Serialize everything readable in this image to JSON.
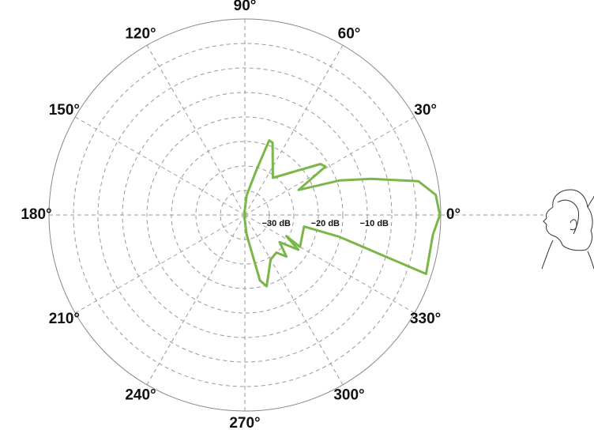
{
  "chart_data": {
    "type": "polar",
    "angle_ticks": [
      {
        "value": 0,
        "label": "0°"
      },
      {
        "value": 30,
        "label": "30°"
      },
      {
        "value": 60,
        "label": "60°"
      },
      {
        "value": 90,
        "label": "90°"
      },
      {
        "value": 120,
        "label": "120°"
      },
      {
        "value": 150,
        "label": "150°"
      },
      {
        "value": 180,
        "label": "180°"
      },
      {
        "value": 210,
        "label": "210°"
      },
      {
        "value": 240,
        "label": "240°"
      },
      {
        "value": 270,
        "label": "270°"
      },
      {
        "value": 300,
        "label": "300°"
      },
      {
        "value": 330,
        "label": "330°"
      }
    ],
    "rlim": [
      -40,
      0
    ],
    "rticks": [
      {
        "value": -30,
        "label": "−30 dB"
      },
      {
        "value": -20,
        "label": "−20 dB"
      },
      {
        "value": -10,
        "label": "−10 dB"
      }
    ],
    "rgrid": [
      -35,
      -25,
      -15,
      -5,
      0
    ],
    "series": [
      {
        "color": "#7ab648",
        "theta": [
          0,
          6,
          11,
          16,
          20,
          25,
          31,
          34,
          53,
          69,
          72,
          76,
          85,
          100,
          180,
          260,
          275,
          283,
          287,
          300,
          310,
          315,
          322,
          327,
          333,
          330,
          349,
          347,
          342,
          354
        ],
        "values": [
          -0.2,
          -0.8,
          -3.9,
          -13.2,
          -19.4,
          -27.9,
          -20.8,
          -21.4,
          -30.5,
          -24.2,
          -24,
          -31,
          -36,
          -39.5,
          -40,
          -39.5,
          -36,
          -26.3,
          -24.8,
          -29.5,
          -30,
          -28,
          -31,
          -27,
          -30.5,
          -27,
          -27.7,
          -20.2,
          -1.1,
          -1.4
        ]
      }
    ]
  }
}
